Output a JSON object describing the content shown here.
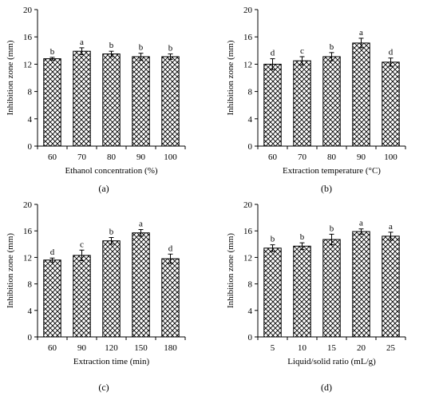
{
  "chart_data": [
    {
      "type": "bar",
      "panel_label": "(a)",
      "xlabel": "Ethanol concentration (%)",
      "ylabel": "Inhibition zone (mm)",
      "ylim": [
        0,
        20
      ],
      "yticks": [
        0,
        4,
        8,
        12,
        16,
        20
      ],
      "categories": [
        "60",
        "70",
        "80",
        "90",
        "100"
      ],
      "values": [
        12.8,
        13.9,
        13.5,
        13.1,
        13.1
      ],
      "errors": [
        0.2,
        0.5,
        0.4,
        0.5,
        0.4
      ],
      "letters": [
        "b",
        "a",
        "b",
        "b",
        "b"
      ]
    },
    {
      "type": "bar",
      "panel_label": "(b)",
      "xlabel": "Extraction temperature (°C)",
      "ylabel": "Inhibition zone (mm)",
      "ylim": [
        0,
        20
      ],
      "yticks": [
        0,
        4,
        8,
        12,
        16,
        20
      ],
      "categories": [
        "60",
        "70",
        "80",
        "90",
        "100"
      ],
      "values": [
        12.0,
        12.5,
        13.1,
        15.1,
        12.3
      ],
      "errors": [
        0.8,
        0.6,
        0.6,
        0.7,
        0.6
      ],
      "letters": [
        "d",
        "c",
        "b",
        "a",
        "d"
      ]
    },
    {
      "type": "bar",
      "panel_label": "(c)",
      "xlabel": "Extraction time (min)",
      "ylabel": "Inhibition zone (mm)",
      "ylim": [
        0,
        20
      ],
      "yticks": [
        0,
        4,
        8,
        12,
        16,
        20
      ],
      "categories": [
        "60",
        "90",
        "120",
        "150",
        "180"
      ],
      "values": [
        11.6,
        12.3,
        14.5,
        15.7,
        11.8
      ],
      "errors": [
        0.3,
        0.8,
        0.5,
        0.5,
        0.7
      ],
      "letters": [
        "d",
        "c",
        "b",
        "a",
        "d"
      ]
    },
    {
      "type": "bar",
      "panel_label": "(d)",
      "xlabel": "Liquid/solid ratio (mL/g)",
      "ylabel": "Inhibition zone (mm)",
      "ylim": [
        0,
        20
      ],
      "yticks": [
        0,
        4,
        8,
        12,
        16,
        20
      ],
      "categories": [
        "5",
        "10",
        "15",
        "20",
        "25"
      ],
      "values": [
        13.4,
        13.7,
        14.7,
        15.9,
        15.2
      ],
      "errors": [
        0.5,
        0.5,
        0.8,
        0.4,
        0.6
      ],
      "letters": [
        "b",
        "b",
        "b",
        "a",
        "a"
      ]
    }
  ]
}
